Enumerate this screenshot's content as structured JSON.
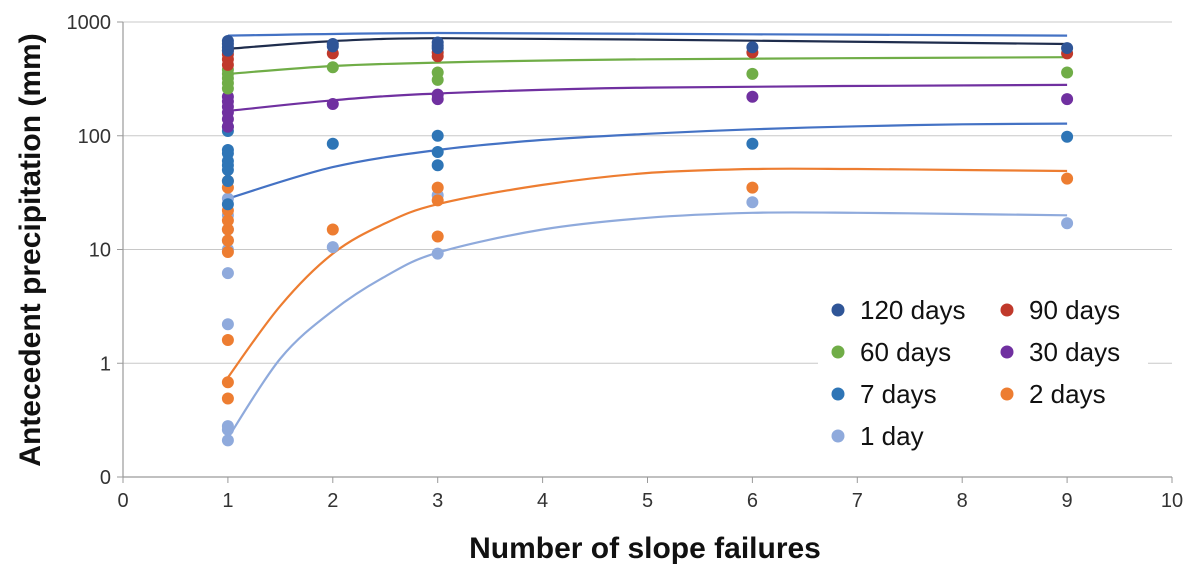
{
  "chart_data": {
    "type": "scatter",
    "xlabel": "Number of slope failures",
    "ylabel": "Antecedent precipitation (mm)",
    "xlim": [
      0,
      10
    ],
    "x_ticks": [
      "0",
      "1",
      "2",
      "3",
      "4",
      "5",
      "6",
      "7",
      "8",
      "9",
      "10"
    ],
    "y_scale": "log",
    "y_ticks": [
      "0",
      "1",
      "10",
      "100",
      "1000"
    ],
    "grid": "horizontal",
    "legend_position": "bottom-right",
    "series": [
      {
        "name": "120 days",
        "color": "#2f5597",
        "line_color": "#4472c4",
        "points": [
          [
            1,
            560
          ],
          [
            1,
            600
          ],
          [
            1,
            640
          ],
          [
            1,
            680
          ],
          [
            2,
            610
          ],
          [
            2,
            640
          ],
          [
            3,
            590
          ],
          [
            3,
            620
          ],
          [
            3,
            660
          ],
          [
            6,
            600
          ],
          [
            9,
            590
          ]
        ],
        "trend": [
          [
            1,
            760
          ],
          [
            3,
            800
          ],
          [
            6,
            780
          ],
          [
            9,
            760
          ]
        ]
      },
      {
        "name": "90 days",
        "color": "#c0392b",
        "line_color": "#1f2d4d",
        "points": [
          [
            1,
            420
          ],
          [
            1,
            470
          ],
          [
            1,
            520
          ],
          [
            1,
            560
          ],
          [
            2,
            530
          ],
          [
            3,
            500
          ],
          [
            3,
            540
          ],
          [
            6,
            540
          ],
          [
            9,
            530
          ]
        ],
        "trend": [
          [
            1,
            580
          ],
          [
            2,
            680
          ],
          [
            3,
            720
          ],
          [
            5,
            700
          ],
          [
            9,
            640
          ]
        ]
      },
      {
        "name": "60 days",
        "color": "#70ad47",
        "line_color": "#70ad47",
        "points": [
          [
            1,
            260
          ],
          [
            1,
            290
          ],
          [
            1,
            320
          ],
          [
            1,
            350
          ],
          [
            1,
            380
          ],
          [
            2,
            400
          ],
          [
            3,
            310
          ],
          [
            3,
            360
          ],
          [
            6,
            350
          ],
          [
            9,
            360
          ]
        ],
        "trend": [
          [
            1,
            350
          ],
          [
            2,
            410
          ],
          [
            3,
            440
          ],
          [
            5,
            470
          ],
          [
            9,
            490
          ]
        ]
      },
      {
        "name": "30 days",
        "color": "#7030a0",
        "line_color": "#7030a0",
        "points": [
          [
            1,
            120
          ],
          [
            1,
            140
          ],
          [
            1,
            160
          ],
          [
            1,
            180
          ],
          [
            1,
            200
          ],
          [
            1,
            220
          ],
          [
            2,
            190
          ],
          [
            3,
            210
          ],
          [
            3,
            230
          ],
          [
            6,
            220
          ],
          [
            9,
            210
          ]
        ],
        "trend": [
          [
            1,
            165
          ],
          [
            2,
            205
          ],
          [
            3,
            235
          ],
          [
            5,
            265
          ],
          [
            9,
            280
          ]
        ]
      },
      {
        "name": "7 days",
        "color": "#2e75b6",
        "line_color": "#4472c4",
        "points": [
          [
            1,
            25
          ],
          [
            1,
            40
          ],
          [
            1,
            50
          ],
          [
            1,
            55
          ],
          [
            1,
            60
          ],
          [
            1,
            70
          ],
          [
            1,
            75
          ],
          [
            1,
            110
          ],
          [
            1,
            120
          ],
          [
            2,
            85
          ],
          [
            3,
            55
          ],
          [
            3,
            72
          ],
          [
            3,
            100
          ],
          [
            6,
            85
          ],
          [
            9,
            98
          ]
        ],
        "trend": [
          [
            1,
            28
          ],
          [
            2,
            53
          ],
          [
            3,
            75
          ],
          [
            4,
            92
          ],
          [
            5,
            104
          ],
          [
            6,
            114
          ],
          [
            7,
            121
          ],
          [
            8,
            126
          ],
          [
            9,
            128
          ]
        ]
      },
      {
        "name": "2 days",
        "color": "#ed7d31",
        "line_color": "#ed7d31",
        "points": [
          [
            1,
            0.49
          ],
          [
            1,
            0.68
          ],
          [
            1,
            1.6
          ],
          [
            1,
            9.5
          ],
          [
            1,
            12
          ],
          [
            1,
            15
          ],
          [
            1,
            18
          ],
          [
            1,
            22
          ],
          [
            1,
            35
          ],
          [
            1,
            40
          ],
          [
            2,
            15
          ],
          [
            3,
            13
          ],
          [
            3,
            27
          ],
          [
            3,
            35
          ],
          [
            6,
            35
          ],
          [
            9,
            42
          ]
        ],
        "trend": [
          [
            1,
            0.75
          ],
          [
            1.5,
            3.2
          ],
          [
            2,
            9.2
          ],
          [
            2.5,
            17
          ],
          [
            3,
            25
          ],
          [
            4,
            37
          ],
          [
            5,
            47
          ],
          [
            6,
            51
          ],
          [
            7,
            51
          ],
          [
            8,
            50
          ],
          [
            9,
            49
          ]
        ]
      },
      {
        "name": "1 day",
        "color": "#8faadc",
        "line_color": "#8faadc",
        "points": [
          [
            1,
            0.21
          ],
          [
            1,
            0.26
          ],
          [
            1,
            0.28
          ],
          [
            1,
            2.2
          ],
          [
            1,
            6.2
          ],
          [
            1,
            10
          ],
          [
            1,
            12
          ],
          [
            1,
            15
          ],
          [
            1,
            20
          ],
          [
            1,
            28
          ],
          [
            2,
            10.5
          ],
          [
            3,
            9.2
          ],
          [
            3,
            30
          ],
          [
            6,
            26
          ],
          [
            9,
            17
          ]
        ],
        "trend": [
          [
            1,
            0.22
          ],
          [
            1.5,
            1.1
          ],
          [
            2,
            2.9
          ],
          [
            2.5,
            5.8
          ],
          [
            3,
            9.4
          ],
          [
            4,
            15
          ],
          [
            5,
            19
          ],
          [
            6,
            21
          ],
          [
            7,
            21
          ],
          [
            8,
            20.5
          ],
          [
            9,
            20
          ]
        ]
      }
    ]
  }
}
